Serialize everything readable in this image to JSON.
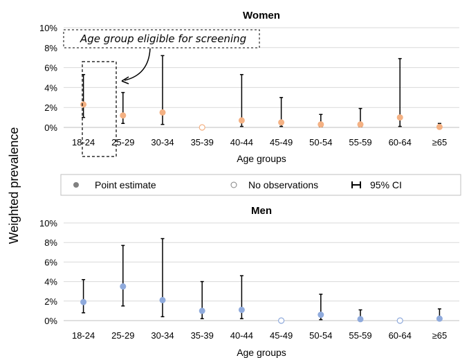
{
  "y_axis_label": "Weighted prevalence",
  "legend": {
    "point_label": "Point estimate",
    "noobs_label": "No observations",
    "ci_label": "95% CI"
  },
  "annotation": "Age group eligible for screening",
  "colors": {
    "women": "#f4b183",
    "men": "#8faadc",
    "legend_point": "#808080"
  },
  "chart_data": [
    {
      "type": "scatter",
      "title": "Women",
      "xlabel": "Age groups",
      "ylabel": "Weighted prevalence",
      "categories": [
        "18-24",
        "25-29",
        "30-34",
        "35-39",
        "40-44",
        "45-49",
        "50-54",
        "55-59",
        "60-64",
        "≥65"
      ],
      "yticks": [
        "0%",
        "2%",
        "4%",
        "6%",
        "8%",
        "10%"
      ],
      "ylim": [
        0,
        10
      ],
      "values": [
        2.3,
        1.2,
        1.5,
        0,
        0.7,
        0.5,
        0.3,
        0.3,
        1.0,
        0.05
      ],
      "ci_low": [
        1.0,
        0.4,
        0.3,
        0,
        0.1,
        0.1,
        0.05,
        0.05,
        0.1,
        0.0
      ],
      "ci_high": [
        5.3,
        3.5,
        7.2,
        0,
        5.3,
        3.0,
        1.3,
        1.9,
        6.9,
        0.4
      ],
      "no_observations": [
        false,
        false,
        false,
        true,
        false,
        false,
        false,
        false,
        false,
        false
      ],
      "highlight_category": "18-24",
      "grid": true
    },
    {
      "type": "scatter",
      "title": "Men",
      "xlabel": "Age groups",
      "ylabel": "Weighted prevalence",
      "categories": [
        "18-24",
        "25-29",
        "30-34",
        "35-39",
        "40-44",
        "45-49",
        "50-54",
        "55-59",
        "60-64",
        "≥65"
      ],
      "yticks": [
        "0%",
        "2%",
        "4%",
        "6%",
        "8%",
        "10%"
      ],
      "ylim": [
        0,
        10
      ],
      "values": [
        1.9,
        3.5,
        2.1,
        1.0,
        1.1,
        0,
        0.6,
        0.15,
        0,
        0.2
      ],
      "ci_low": [
        0.8,
        1.5,
        0.4,
        0.2,
        0.2,
        0,
        0.1,
        0.0,
        0,
        0.0
      ],
      "ci_high": [
        4.2,
        7.7,
        8.4,
        4.0,
        4.6,
        0,
        2.7,
        1.1,
        0,
        1.2
      ],
      "no_observations": [
        false,
        false,
        false,
        false,
        false,
        true,
        false,
        false,
        true,
        false
      ],
      "grid": true
    }
  ]
}
